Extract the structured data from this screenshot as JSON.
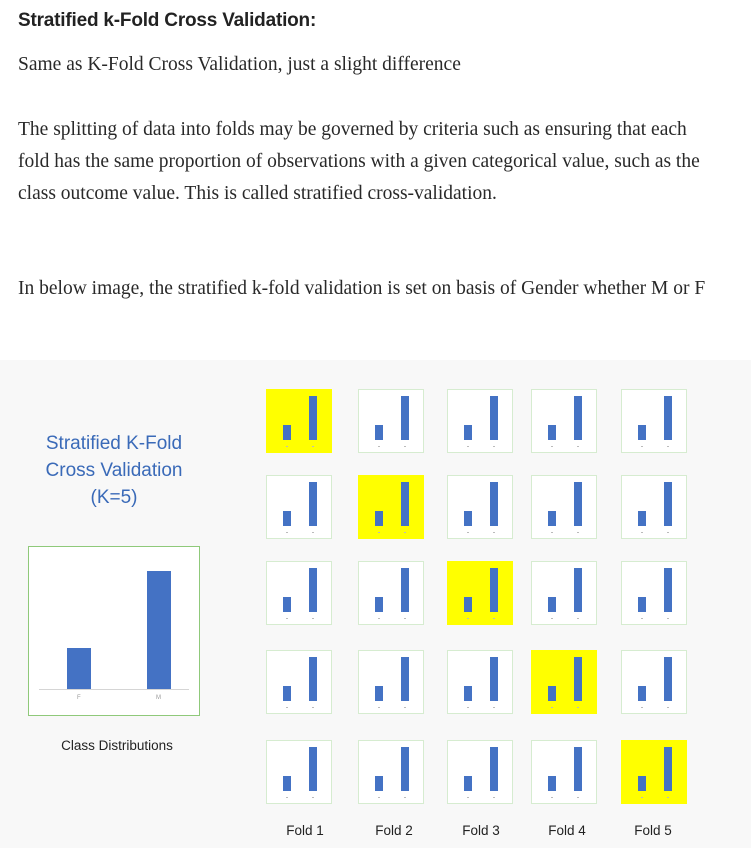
{
  "heading": "Stratified k-Fold Cross Validation:",
  "paragraphs": [
    "Same as K-Fold Cross Validation, just a slight difference",
    "The splitting of data into folds may be governed by criteria such as ensuring that each fold has the same proportion of observations with a given categorical value, such as the class outcome value. This is called stratified cross-validation.",
    "In below image, the stratified k-fold validation is set on basis of Gender whether M or F"
  ],
  "figure": {
    "title_lines": [
      "Stratified K-Fold",
      "Cross Validation",
      "(K=5)"
    ],
    "class_caption": "Class Distributions",
    "class_labels": [
      "F",
      "M"
    ],
    "fold_labels": [
      "Fold 1",
      "Fold 2",
      "Fold 3",
      "Fold 4",
      "Fold 5"
    ],
    "test_fold_by_row": [
      1,
      2,
      3,
      4,
      5
    ],
    "colors": {
      "bar": "#4472c4",
      "test_fold": "#ffff00",
      "title": "#3a6ab8"
    }
  },
  "chart_data": {
    "type": "bar",
    "categories": [
      "F",
      "M"
    ],
    "values": [
      0.35,
      1.0
    ],
    "title": "",
    "xlabel": "Class Distributions",
    "ylabel": ""
  }
}
